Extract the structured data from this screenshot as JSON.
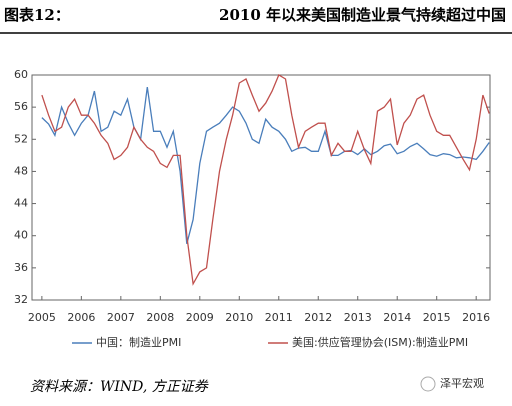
{
  "header": {
    "label": "图表12：",
    "title": "2010 年以来美国制造业景气持续超过中国"
  },
  "chart_data": {
    "type": "line",
    "x": [
      2005,
      2005.17,
      2005.33,
      2005.5,
      2005.67,
      2005.83,
      2006,
      2006.17,
      2006.33,
      2006.5,
      2006.67,
      2006.83,
      2007,
      2007.17,
      2007.33,
      2007.5,
      2007.67,
      2007.83,
      2008,
      2008.17,
      2008.33,
      2008.5,
      2008.67,
      2008.83,
      2009,
      2009.17,
      2009.33,
      2009.5,
      2009.67,
      2009.83,
      2010,
      2010.17,
      2010.33,
      2010.5,
      2010.67,
      2010.83,
      2011,
      2011.17,
      2011.33,
      2011.5,
      2011.67,
      2011.83,
      2012,
      2012.17,
      2012.33,
      2012.5,
      2012.67,
      2012.83,
      2013,
      2013.17,
      2013.33,
      2013.5,
      2013.67,
      2013.83,
      2014,
      2014.17,
      2014.33,
      2014.5,
      2014.67,
      2014.83,
      2015,
      2015.17,
      2015.33,
      2015.5,
      2015.67,
      2015.83,
      2016,
      2016.17,
      2016.33
    ],
    "series": [
      {
        "name": "中国：制造业PMI",
        "color": "#4a7ebb",
        "values": [
          54.7,
          53.9,
          52.5,
          56,
          54,
          52.5,
          54,
          55,
          58,
          53,
          53.5,
          55.5,
          55,
          57,
          53.5,
          52,
          58.5,
          53,
          53,
          51,
          53,
          48,
          39,
          42,
          49,
          53,
          53.5,
          54,
          55,
          56,
          55.5,
          54,
          52,
          51.5,
          54.5,
          53.5,
          53,
          52,
          50.5,
          50.9,
          51,
          50.5,
          50.5,
          53,
          50,
          50,
          50.5,
          50.6,
          50.1,
          50.8,
          50.1,
          50.5,
          51.2,
          51.4,
          50.2,
          50.5,
          51.1,
          51.5,
          50.8,
          50.1,
          49.9,
          50.2,
          50.1,
          49.7,
          49.8,
          49.7,
          49.5,
          50.5,
          51.6
        ]
      },
      {
        "name": "美国:供应管理协会(ISM):制造业PMI",
        "color": "#c0504d",
        "values": [
          57.5,
          55,
          53,
          53.5,
          56,
          57,
          55,
          55,
          54,
          52.5,
          51.5,
          49.5,
          50,
          51,
          53.5,
          52,
          51,
          50.5,
          49,
          48.5,
          50,
          50,
          40,
          34,
          35.5,
          36,
          42,
          48,
          52,
          55,
          59,
          59.5,
          57.5,
          55.5,
          56.5,
          58,
          60,
          59.5,
          55,
          51,
          53,
          53.5,
          54,
          54,
          50,
          51.5,
          50.5,
          50.5,
          53,
          50.7,
          49,
          55.5,
          56,
          57,
          51.3,
          54,
          55,
          57,
          57.5,
          55,
          53,
          52.5,
          52.5,
          51,
          49.5,
          48.2,
          52,
          57.5,
          55.2
        ]
      }
    ],
    "xlim": [
      2004.75,
      2016.35
    ],
    "xticks": [
      2005,
      2006,
      2007,
      2008,
      2009,
      2010,
      2011,
      2012,
      2013,
      2014,
      2015,
      2016
    ],
    "ylim": [
      32,
      60
    ],
    "yticks": [
      32,
      36,
      40,
      44,
      48,
      52,
      56,
      60
    ],
    "grid": false
  },
  "footer": {
    "source": "资料来源：WIND, 方正证券",
    "watermark": "泽平宏观"
  }
}
